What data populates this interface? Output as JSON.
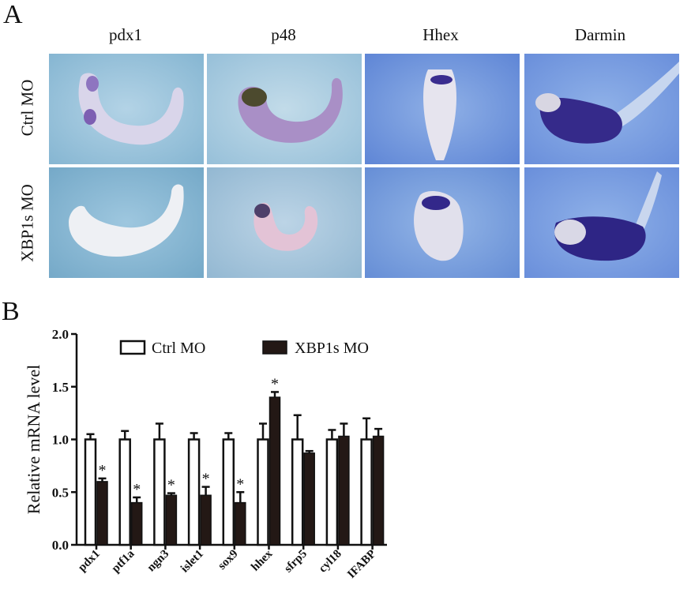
{
  "panel_a": {
    "letter": "A",
    "columns": [
      "pdx1",
      "p48",
      "Hhex",
      "Darmin"
    ],
    "rows": [
      "Ctrl MO",
      "XBP1s MO"
    ]
  },
  "panel_b": {
    "letter": "B"
  },
  "chart_data": {
    "type": "bar",
    "categories": [
      "pdx1",
      "ptf1a",
      "ngn3",
      "islet1",
      "sox9",
      "hhex",
      "sfrp5",
      "cyl18",
      "IFABP"
    ],
    "series": [
      {
        "name": "Ctrl MO",
        "values": [
          1.0,
          1.0,
          1.0,
          1.0,
          1.0,
          1.0,
          1.0,
          1.0,
          1.0
        ],
        "errors": [
          0.05,
          0.08,
          0.15,
          0.06,
          0.06,
          0.15,
          0.23,
          0.09,
          0.2
        ],
        "color": "#ffffff"
      },
      {
        "name": "XBP1s MO",
        "values": [
          0.6,
          0.4,
          0.47,
          0.47,
          0.4,
          1.4,
          0.87,
          1.03,
          1.03
        ],
        "errors": [
          0.03,
          0.05,
          0.02,
          0.08,
          0.1,
          0.05,
          0.02,
          0.12,
          0.07
        ],
        "color": "#231815"
      }
    ],
    "significant": [
      true,
      true,
      true,
      true,
      true,
      true,
      false,
      false,
      false
    ],
    "significance_mark": "*",
    "ylabel": "Relative mRNA level",
    "ylim": [
      0,
      2.0
    ],
    "yticks": [
      "0.0",
      "0.5",
      "1.0",
      "1.5",
      "2.0"
    ],
    "legend_position": "top"
  }
}
